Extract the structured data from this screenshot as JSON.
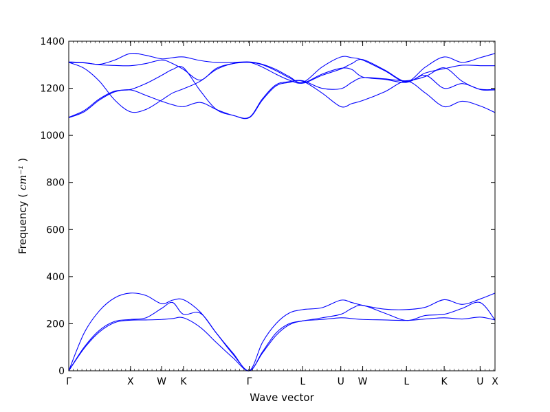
{
  "chart_data": {
    "type": "line",
    "title": "",
    "xlabel": "Wave vector",
    "ylabel": "Frequency",
    "ylabel_unit": "cm⁻¹",
    "ylim": [
      0,
      1400
    ],
    "yticks": [
      0,
      200,
      400,
      600,
      800,
      1000,
      1200,
      1400
    ],
    "xlim": [
      0,
      9.73
    ],
    "xticks": [
      {
        "label": "Γ",
        "x": 0.0
      },
      {
        "label": "X",
        "x": 1.41
      },
      {
        "label": "W",
        "x": 2.12
      },
      {
        "label": "K",
        "x": 2.62
      },
      {
        "label": "Γ",
        "x": 4.12
      },
      {
        "label": "L",
        "x": 5.34
      },
      {
        "label": "U",
        "x": 6.21
      },
      {
        "label": "W",
        "x": 6.71
      },
      {
        "label": "L",
        "x": 7.71
      },
      {
        "label": "K",
        "x": 8.57
      },
      {
        "label": "U",
        "x": 9.39
      },
      {
        "label": "X",
        "x": 9.73
      }
    ],
    "line_color": "#0000ff",
    "grid": false,
    "legend": "none",
    "series": [
      {
        "x": [
          0,
          0.35,
          0.7,
          1.05,
          1.41,
          1.76,
          2.12,
          2.37,
          2.62,
          3.0,
          3.37,
          3.75,
          4.12,
          4.42,
          4.73,
          5.03,
          5.34,
          5.78,
          6.21,
          6.46,
          6.71,
          7.21,
          7.71,
          8.14,
          8.57,
          8.98,
          9.39,
          9.73
        ],
        "values": [
          0,
          95,
          165,
          205,
          215,
          216,
          218,
          222,
          225,
          185,
          120,
          55,
          0,
          75,
          150,
          195,
          212,
          218,
          225,
          222,
          218,
          216,
          214,
          220,
          225,
          220,
          228,
          216
        ]
      },
      {
        "x": [
          0,
          0.35,
          0.7,
          1.05,
          1.41,
          1.76,
          2.12,
          2.37,
          2.62,
          3.0,
          3.37,
          3.75,
          4.12,
          4.42,
          4.73,
          5.03,
          5.34,
          5.78,
          6.21,
          6.46,
          6.71,
          7.21,
          7.71,
          8.14,
          8.57,
          8.98,
          9.39,
          9.73
        ],
        "values": [
          0,
          100,
          172,
          210,
          218,
          225,
          265,
          290,
          240,
          245,
          160,
          70,
          0,
          80,
          160,
          200,
          212,
          225,
          240,
          265,
          278,
          245,
          214,
          235,
          240,
          265,
          290,
          216
        ]
      },
      {
        "x": [
          0,
          0.35,
          0.7,
          1.05,
          1.41,
          1.76,
          2.12,
          2.37,
          2.62,
          3.0,
          3.37,
          3.75,
          4.12,
          4.42,
          4.73,
          5.03,
          5.34,
          5.78,
          6.21,
          6.46,
          6.71,
          7.21,
          7.71,
          8.14,
          8.57,
          8.98,
          9.39,
          9.73
        ],
        "values": [
          0,
          160,
          255,
          310,
          330,
          320,
          285,
          300,
          302,
          250,
          160,
          75,
          0,
          120,
          200,
          245,
          260,
          268,
          300,
          290,
          278,
          262,
          260,
          270,
          302,
          282,
          305,
          330
        ]
      },
      {
        "x": [
          0,
          0.35,
          0.7,
          1.05,
          1.41,
          1.76,
          2.12,
          2.37,
          2.62,
          3.0,
          3.37,
          3.75,
          4.12,
          4.42,
          4.73,
          5.03,
          5.34,
          5.78,
          6.21,
          6.46,
          6.71,
          7.21,
          7.71,
          8.14,
          8.57,
          8.98,
          9.39,
          9.73
        ],
        "values": [
          1075,
          1100,
          1150,
          1185,
          1193,
          1170,
          1145,
          1130,
          1122,
          1140,
          1110,
          1085,
          1075,
          1150,
          1210,
          1225,
          1230,
          1180,
          1122,
          1135,
          1148,
          1185,
          1230,
          1180,
          1122,
          1145,
          1125,
          1097
        ]
      },
      {
        "x": [
          0,
          0.35,
          0.7,
          1.05,
          1.41,
          1.76,
          2.12,
          2.37,
          2.62,
          3.0,
          3.37,
          3.75,
          4.12,
          4.42,
          4.73,
          5.03,
          5.34,
          5.78,
          6.21,
          6.46,
          6.71,
          7.21,
          7.71,
          8.14,
          8.57,
          8.98,
          9.39,
          9.73
        ],
        "values": [
          1077,
          1105,
          1155,
          1188,
          1195,
          1220,
          1255,
          1280,
          1287,
          1190,
          1110,
          1085,
          1077,
          1155,
          1215,
          1228,
          1232,
          1200,
          1198,
          1225,
          1245,
          1240,
          1232,
          1250,
          1287,
          1230,
          1195,
          1193
        ]
      },
      {
        "x": [
          0,
          0.35,
          0.7,
          1.05,
          1.41,
          1.76,
          2.12,
          2.37,
          2.62,
          3.0,
          3.37,
          3.75,
          4.12,
          4.42,
          4.73,
          5.03,
          5.34,
          5.78,
          6.21,
          6.46,
          6.71,
          7.21,
          7.71,
          8.14,
          8.57,
          8.98,
          9.39,
          9.73
        ],
        "values": [
          1310,
          1285,
          1230,
          1150,
          1100,
          1110,
          1150,
          1180,
          1198,
          1230,
          1280,
          1305,
          1310,
          1290,
          1260,
          1235,
          1222,
          1260,
          1285,
          1280,
          1248,
          1238,
          1225,
          1255,
          1200,
          1220,
          1196,
          1195
        ]
      },
      {
        "x": [
          0,
          0.35,
          0.7,
          1.05,
          1.41,
          1.76,
          2.12,
          2.37,
          2.62,
          3.0,
          3.37,
          3.75,
          4.12,
          4.42,
          4.73,
          5.03,
          5.34,
          5.78,
          6.21,
          6.46,
          6.71,
          7.21,
          7.71,
          8.14,
          8.57,
          8.98,
          9.39,
          9.73
        ],
        "values": [
          1310,
          1308,
          1300,
          1297,
          1296,
          1305,
          1320,
          1305,
          1280,
          1235,
          1285,
          1305,
          1310,
          1300,
          1275,
          1245,
          1222,
          1255,
          1282,
          1305,
          1322,
          1278,
          1228,
          1265,
          1283,
          1298,
          1296,
          1296
        ]
      },
      {
        "x": [
          0,
          0.35,
          0.7,
          1.05,
          1.41,
          1.76,
          2.12,
          2.37,
          2.62,
          3.0,
          3.37,
          3.75,
          4.12,
          4.42,
          4.73,
          5.03,
          5.34,
          5.78,
          6.21,
          6.46,
          6.71,
          7.21,
          7.71,
          8.14,
          8.57,
          8.98,
          9.39,
          9.73
        ],
        "values": [
          1312,
          1309,
          1302,
          1320,
          1348,
          1340,
          1325,
          1330,
          1333,
          1318,
          1310,
          1310,
          1312,
          1302,
          1280,
          1250,
          1225,
          1290,
          1333,
          1330,
          1320,
          1275,
          1228,
          1290,
          1333,
          1310,
          1330,
          1348
        ]
      }
    ]
  }
}
